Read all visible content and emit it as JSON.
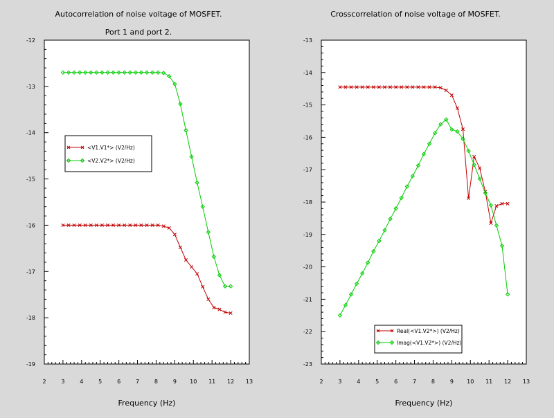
{
  "window": {
    "background": "#d9d9d9"
  },
  "chart_data": [
    {
      "type": "line",
      "title": "Autocorrelation of noise voltage of MOSFET.",
      "subtitle": "Port 1 and port 2.",
      "xlabel": "Frequency (Hz)",
      "ylabel": "",
      "xlim": [
        2,
        13
      ],
      "ylim": [
        -19,
        -12
      ],
      "xticks": [
        "2",
        "3",
        "4",
        "5",
        "6",
        "7",
        "8",
        "9",
        "10",
        "11",
        "12",
        "13"
      ],
      "yticks": [
        "-19",
        "-18",
        "-17",
        "-16",
        "-15",
        "-14",
        "-13",
        "-12"
      ],
      "grid": false,
      "legend_position": "middle-left",
      "series": [
        {
          "name": "<V1.V1*> (V2/Hz)",
          "color": "#c00000",
          "marker": "x",
          "x": [
            3.0,
            3.3,
            3.6,
            3.9,
            4.2,
            4.5,
            4.8,
            5.1,
            5.4,
            5.7,
            6.0,
            6.3,
            6.6,
            6.9,
            7.2,
            7.5,
            7.8,
            8.1,
            8.4,
            8.7,
            9.0,
            9.3,
            9.6,
            9.9,
            10.2,
            10.5,
            10.8,
            11.1,
            11.4,
            11.7,
            12.0
          ],
          "y": [
            -16.0,
            -16.0,
            -16.0,
            -16.0,
            -16.0,
            -16.0,
            -16.0,
            -16.0,
            -16.0,
            -16.0,
            -16.0,
            -16.0,
            -16.0,
            -16.0,
            -16.0,
            -16.0,
            -16.0,
            -16.0,
            -16.02,
            -16.06,
            -16.2,
            -16.48,
            -16.75,
            -16.9,
            -17.05,
            -17.33,
            -17.6,
            -17.78,
            -17.82,
            -17.88,
            -17.9
          ]
        },
        {
          "name": "<V2.V2*> (V2/Hz)",
          "color": "#00cc00",
          "marker": "diamond",
          "x": [
            3.0,
            3.3,
            3.6,
            3.9,
            4.2,
            4.5,
            4.8,
            5.1,
            5.4,
            5.7,
            6.0,
            6.3,
            6.6,
            6.9,
            7.2,
            7.5,
            7.8,
            8.1,
            8.4,
            8.7,
            9.0,
            9.3,
            9.6,
            9.9,
            10.2,
            10.5,
            10.8,
            11.1,
            11.4,
            11.7,
            12.0
          ],
          "y": [
            -12.7,
            -12.7,
            -12.7,
            -12.7,
            -12.7,
            -12.7,
            -12.7,
            -12.7,
            -12.7,
            -12.7,
            -12.7,
            -12.7,
            -12.7,
            -12.7,
            -12.7,
            -12.7,
            -12.7,
            -12.7,
            -12.71,
            -12.78,
            -12.95,
            -13.38,
            -13.95,
            -14.52,
            -15.08,
            -15.6,
            -16.15,
            -16.68,
            -17.08,
            -17.32,
            -17.32
          ]
        }
      ]
    },
    {
      "type": "line",
      "title": "Crosscorrelation of noise voltage of MOSFET.",
      "xlabel": "Frequency (Hz)",
      "ylabel": "",
      "xlim": [
        2,
        13
      ],
      "ylim": [
        -23,
        -13
      ],
      "xticks": [
        "2",
        "3",
        "4",
        "5",
        "6",
        "7",
        "8",
        "9",
        "10",
        "11",
        "12",
        "13"
      ],
      "yticks": [
        "-23",
        "-22",
        "-21",
        "-20",
        "-19",
        "-18",
        "-17",
        "-16",
        "-15",
        "-14",
        "-13"
      ],
      "grid": false,
      "legend_position": "bottom-right",
      "series": [
        {
          "name": "Real(<V1.V2*>) (V2/Hz)",
          "color": "#c00000",
          "marker": "x",
          "x": [
            3.0,
            3.3,
            3.6,
            3.9,
            4.2,
            4.5,
            4.8,
            5.1,
            5.4,
            5.7,
            6.0,
            6.3,
            6.6,
            6.9,
            7.2,
            7.5,
            7.8,
            8.1,
            8.4,
            8.7,
            9.0,
            9.3,
            9.6,
            9.9,
            10.2,
            10.5,
            10.8,
            11.1,
            11.4,
            11.7,
            12.0
          ],
          "y": [
            -14.45,
            -14.45,
            -14.45,
            -14.45,
            -14.45,
            -14.45,
            -14.45,
            -14.45,
            -14.45,
            -14.45,
            -14.45,
            -14.45,
            -14.45,
            -14.45,
            -14.45,
            -14.45,
            -14.45,
            -14.45,
            -14.47,
            -14.55,
            -14.7,
            -15.1,
            -15.75,
            -17.88,
            -16.6,
            -16.95,
            -17.68,
            -18.65,
            -18.12,
            -18.05,
            -18.05
          ]
        },
        {
          "name": "Imag(<V1.V2*>) (V2/Hz)",
          "color": "#00cc00",
          "marker": "diamond",
          "x": [
            3.0,
            3.3,
            3.6,
            3.9,
            4.2,
            4.5,
            4.8,
            5.1,
            5.4,
            5.7,
            6.0,
            6.3,
            6.6,
            6.9,
            7.2,
            7.5,
            7.8,
            8.1,
            8.4,
            8.7,
            9.0,
            9.3,
            9.6,
            9.9,
            10.2,
            10.5,
            10.8,
            11.1,
            11.4,
            11.7,
            12.0
          ],
          "y": [
            -21.5,
            -21.18,
            -20.85,
            -20.52,
            -20.2,
            -19.87,
            -19.52,
            -19.2,
            -18.87,
            -18.52,
            -18.2,
            -17.87,
            -17.52,
            -17.2,
            -16.87,
            -16.52,
            -16.2,
            -15.87,
            -15.6,
            -15.45,
            -15.76,
            -15.82,
            -16.05,
            -16.42,
            -16.85,
            -17.28,
            -17.72,
            -18.1,
            -18.72,
            -19.35,
            -20.85
          ]
        }
      ]
    }
  ]
}
